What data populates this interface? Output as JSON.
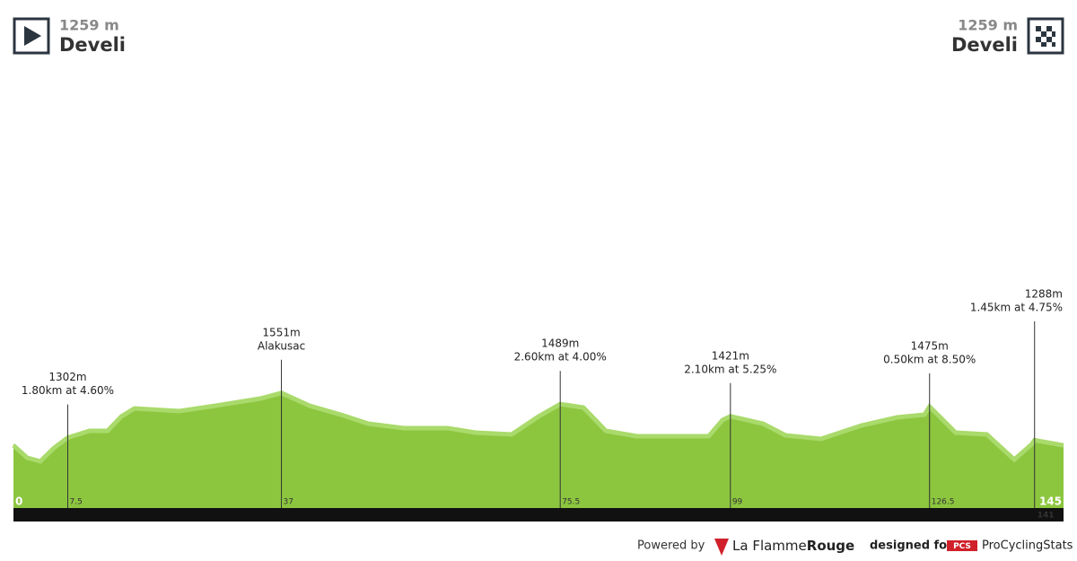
{
  "chart_data": {
    "type": "area",
    "start": {
      "altitude": {
        "value": 1259,
        "label": "1259 m"
      },
      "name": "Develi"
    },
    "finish": {
      "altitude": {
        "value": 1259,
        "label": "1259 m"
      },
      "name": "Develi"
    },
    "x": [
      0,
      1.9,
      3.7,
      5.6,
      7.5,
      10.5,
      13,
      14.9,
      16.7,
      22.9,
      27.9,
      34.1,
      37,
      40.9,
      45.2,
      49,
      53.9,
      60,
      63.8,
      68.8,
      72.5,
      75.5,
      78.7,
      81.8,
      86.1,
      96,
      97.9,
      99,
      103.5,
      106.6,
      111.5,
      117.1,
      122,
      125.8,
      126.5,
      130.1,
      134.4,
      138.2,
      140.6,
      141,
      145
    ],
    "values": [
      1259,
      1190,
      1170,
      1245,
      1302,
      1340,
      1340,
      1420,
      1465,
      1450,
      1480,
      1520,
      1551,
      1480,
      1430,
      1380,
      1355,
      1355,
      1330,
      1320,
      1420,
      1489,
      1470,
      1340,
      1310,
      1310,
      1400,
      1421,
      1380,
      1315,
      1295,
      1370,
      1415,
      1430,
      1475,
      1330,
      1320,
      1180,
      1265,
      1288,
      1259
    ],
    "color": "#8cc63f",
    "highlight_color": "#a9da6b",
    "xlim": [
      0,
      145
    ],
    "ylim": [
      900,
      2500
    ],
    "xticks": [
      0,
      145
    ],
    "climbs": [
      {
        "km": 7.5,
        "altitude": {
          "value": 1302,
          "label": "1302m"
        },
        "description": "1.80km at 4.60%"
      },
      {
        "km": 37,
        "altitude": {
          "value": 1551,
          "label": "1551m"
        },
        "description": "Alakusac"
      },
      {
        "km": 75.5,
        "altitude": {
          "value": 1489,
          "label": "1489m"
        },
        "description": "2.60km at 4.00%"
      },
      {
        "km": 99,
        "altitude": {
          "value": 1421,
          "label": "1421m"
        },
        "description": "2.10km at 5.25%"
      },
      {
        "km": 126.5,
        "altitude": {
          "value": 1475,
          "label": "1475m"
        },
        "description": "0.50km at 8.50%"
      },
      {
        "km": 141,
        "altitude": {
          "value": 1288,
          "label": "1288m"
        },
        "description": "1.45km at 4.75%"
      }
    ]
  },
  "footer": {
    "powered": "Powered by",
    "brand1": "La Flamme",
    "brand2": "Rouge",
    "designed": "designed for",
    "pcs": "PCS",
    "site": "ProCyclingStats"
  }
}
